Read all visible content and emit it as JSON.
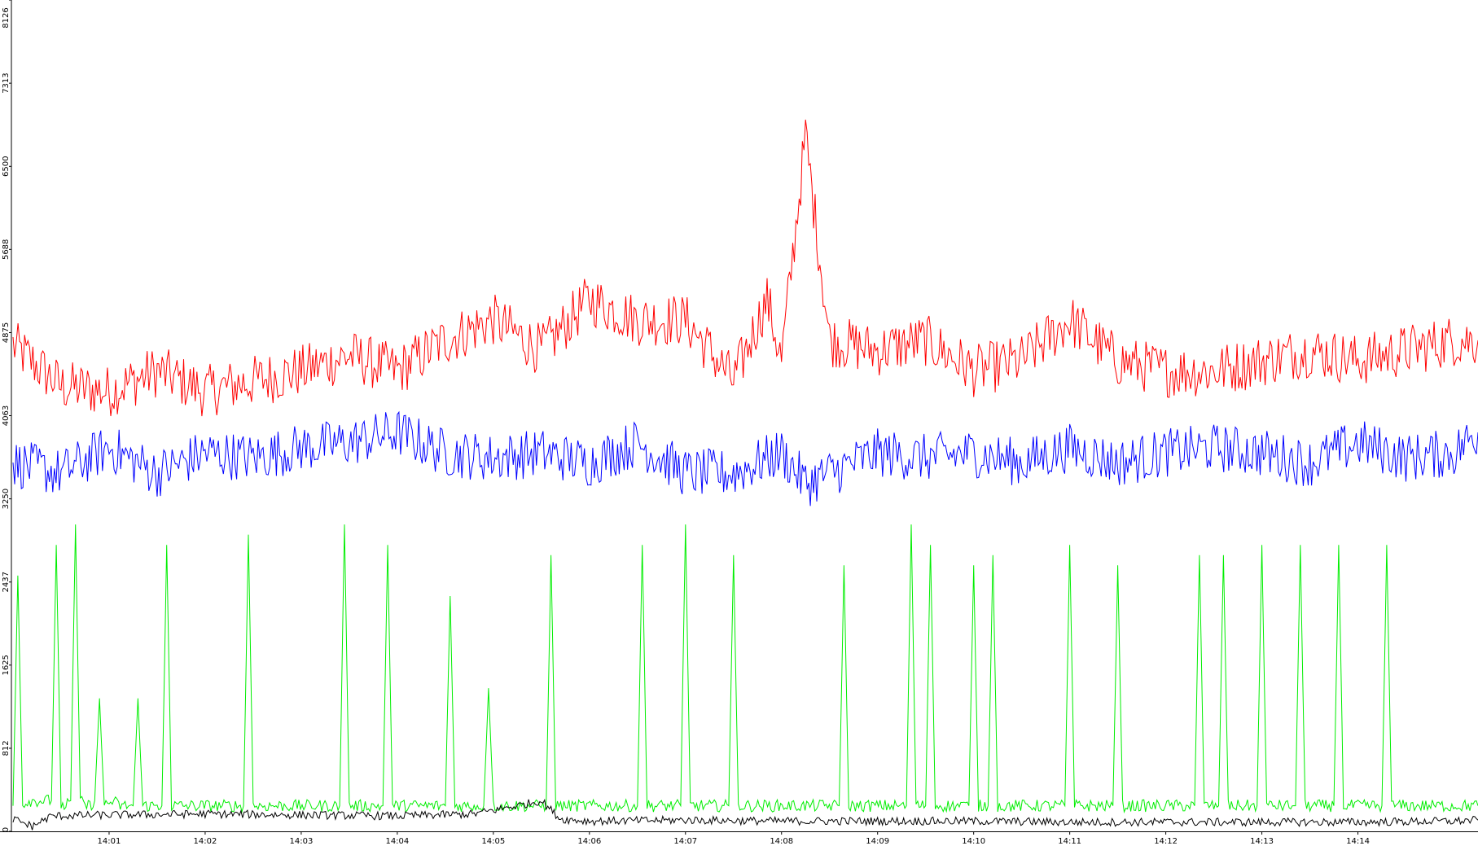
{
  "chart_data": {
    "type": "line",
    "title": "",
    "xlabel": "",
    "ylabel": "",
    "grid": false,
    "legend": "none",
    "y_axis": {
      "range": [
        0,
        8126
      ],
      "ticks": [
        0,
        812,
        1625,
        2437,
        3250,
        4063,
        4875,
        5688,
        6500,
        7313,
        8126
      ],
      "tick_labels": [
        "0",
        "812",
        "1625",
        "2437",
        "3250",
        "4063",
        "4875",
        "5688",
        "6500",
        "7313",
        "8126"
      ]
    },
    "x_axis": {
      "range_minutes": [
        0,
        15.25
      ],
      "ticks": [
        1,
        2,
        3,
        4,
        5,
        6,
        7,
        8,
        9,
        10,
        11,
        12,
        13,
        14
      ],
      "tick_labels": [
        "14:01",
        "14:02",
        "14:03",
        "14:04",
        "14:05",
        "14:06",
        "14:07",
        "14:08",
        "14:09",
        "14:10",
        "14:11",
        "14:12",
        "14:13",
        "14:14"
      ]
    },
    "series": [
      {
        "color": "#ff0000",
        "x": [
          0,
          0.5,
          1,
          1.5,
          2,
          2.5,
          3,
          3.5,
          4,
          4.5,
          5,
          5.5,
          6,
          6.5,
          7,
          7.5,
          7.85,
          8,
          8.25,
          8.5,
          9,
          9.5,
          10,
          10.5,
          11,
          11.5,
          12,
          12.5,
          13,
          13.5,
          14,
          14.5,
          15,
          15.25
        ],
        "values": [
          4750,
          4350,
          4300,
          4500,
          4300,
          4400,
          4500,
          4650,
          4500,
          4800,
          5000,
          4700,
          5200,
          5000,
          5000,
          4400,
          5200,
          4600,
          6800,
          4800,
          4700,
          4800,
          4500,
          4600,
          5000,
          4600,
          4500,
          4500,
          4600,
          4700,
          4600,
          4700,
          4800,
          4800
        ]
      },
      {
        "color": "#0000ff",
        "x": [
          0,
          0.5,
          1,
          1.5,
          2,
          2.5,
          3,
          3.5,
          4,
          4.5,
          5,
          5.5,
          6,
          6.5,
          7,
          7.5,
          8,
          8.25,
          8.5,
          9,
          9.5,
          10,
          10.5,
          11,
          11.5,
          12,
          12.5,
          13,
          13.5,
          14,
          14.5,
          15,
          15.25
        ],
        "values": [
          3600,
          3500,
          3750,
          3500,
          3700,
          3650,
          3750,
          3800,
          3900,
          3700,
          3650,
          3700,
          3600,
          3800,
          3500,
          3500,
          3700,
          3400,
          3500,
          3700,
          3650,
          3700,
          3600,
          3750,
          3600,
          3700,
          3750,
          3700,
          3600,
          3800,
          3650,
          3700,
          3900
        ]
      },
      {
        "color": "#00ee00",
        "x": [
          0,
          0.05,
          0.1,
          0.15,
          0.4,
          0.45,
          0.5,
          0.55,
          0.6,
          0.65,
          0.7,
          0.75,
          0.8,
          0.85,
          0.9,
          0.95,
          1.05,
          1.1,
          1.15,
          1.25,
          1.3,
          1.35,
          1.55,
          1.6,
          1.65,
          2.4,
          2.45,
          2.5,
          3.4,
          3.45,
          3.5,
          3.85,
          3.9,
          3.95,
          4.5,
          4.55,
          4.6,
          4.9,
          4.95,
          5,
          5.55,
          5.6,
          5.65,
          6.5,
          6.55,
          6.6,
          6.95,
          7,
          7.05,
          7.45,
          7.5,
          7.55,
          8.6,
          8.65,
          8.7,
          9.3,
          9.35,
          9.4,
          9.5,
          9.55,
          9.6,
          9.95,
          10,
          10.05,
          10.15,
          10.2,
          10.25,
          10.95,
          11,
          11.05,
          11.45,
          11.5,
          11.55,
          12.3,
          12.35,
          12.4,
          12.55,
          12.6,
          12.65,
          12.95,
          13,
          13.05,
          13.35,
          13.4,
          13.45,
          13.75,
          13.8,
          13.85,
          14.25,
          14.3,
          14.35,
          15.25
        ],
        "values": [
          250,
          2500,
          250,
          300,
          300,
          2800,
          250,
          250,
          300,
          3000,
          300,
          250,
          250,
          300,
          1300,
          250,
          300,
          250,
          250,
          250,
          1300,
          250,
          250,
          2800,
          250,
          250,
          2900,
          250,
          250,
          3000,
          250,
          250,
          2800,
          250,
          250,
          2300,
          250,
          250,
          1400,
          250,
          250,
          2700,
          250,
          250,
          2800,
          250,
          250,
          3000,
          250,
          250,
          2700,
          250,
          250,
          2600,
          250,
          250,
          3000,
          250,
          250,
          2800,
          250,
          250,
          2600,
          250,
          250,
          2700,
          250,
          250,
          2800,
          250,
          250,
          2600,
          250,
          250,
          2700,
          250,
          250,
          2700,
          250,
          250,
          2800,
          250,
          250,
          2800,
          250,
          250,
          2800,
          250,
          250,
          2800,
          250,
          250
        ]
      },
      {
        "color": "#000000",
        "x": [
          0,
          0.2,
          0.4,
          1,
          2,
          3,
          4,
          4.8,
          5.3,
          5.5,
          5.7,
          6,
          7,
          8,
          9,
          10,
          11,
          12,
          13,
          14,
          15,
          15.25
        ],
        "values": [
          120,
          50,
          150,
          160,
          170,
          160,
          150,
          170,
          260,
          300,
          120,
          100,
          110,
          100,
          100,
          100,
          90,
          90,
          90,
          90,
          100,
          110
        ]
      }
    ]
  }
}
